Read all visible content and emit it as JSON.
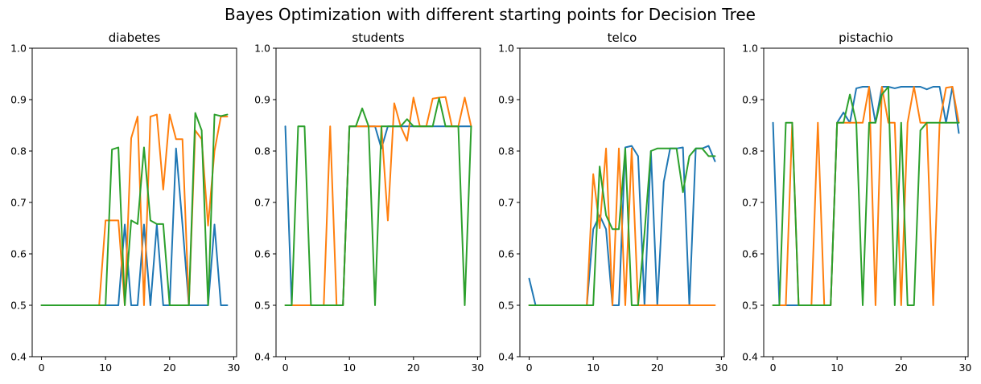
{
  "figure_title": "Bayes Optimization with different starting points for Decision Tree",
  "colors": {
    "c0": "#1f77b4",
    "c1": "#ff7f0e",
    "c2": "#2ca02c"
  },
  "chart_data": [
    {
      "type": "line",
      "title": "diabetes",
      "xlabel": "",
      "ylabel": "",
      "xlim": [
        -1.45,
        30.45
      ],
      "ylim": [
        0.4,
        1.0
      ],
      "xticks": [
        0,
        10,
        20,
        30
      ],
      "yticks": [
        0.4,
        0.5,
        0.6,
        0.7,
        0.8,
        0.9,
        1.0
      ],
      "xtick_labels": [
        "0",
        "10",
        "20",
        "30"
      ],
      "ytick_labels": [
        "0.4",
        "0.5",
        "0.6",
        "0.7",
        "0.8",
        "0.9",
        "1.0"
      ],
      "x": [
        0,
        1,
        2,
        3,
        4,
        5,
        6,
        7,
        8,
        9,
        10,
        11,
        12,
        13,
        14,
        15,
        16,
        17,
        18,
        19,
        20,
        21,
        22,
        23,
        24,
        25,
        26,
        27,
        28,
        29
      ],
      "series": [
        {
          "color": "#1f77b4",
          "values": [
            0.5,
            0.5,
            0.5,
            0.5,
            0.5,
            0.5,
            0.5,
            0.5,
            0.5,
            0.5,
            0.5,
            0.5,
            0.5,
            0.657,
            0.5,
            0.5,
            0.657,
            0.5,
            0.657,
            0.5,
            0.5,
            0.805,
            0.657,
            0.5,
            0.5,
            0.5,
            0.5,
            0.657,
            0.5,
            0.5
          ]
        },
        {
          "color": "#ff7f0e",
          "values": [
            0.5,
            0.5,
            0.5,
            0.5,
            0.5,
            0.5,
            0.5,
            0.5,
            0.5,
            0.5,
            0.665,
            0.665,
            0.665,
            0.5,
            0.825,
            0.867,
            0.5,
            0.867,
            0.871,
            0.725,
            0.871,
            0.823,
            0.823,
            0.5,
            0.84,
            0.823,
            0.655,
            0.8,
            0.867,
            0.867
          ]
        },
        {
          "color": "#2ca02c",
          "values": [
            0.5,
            0.5,
            0.5,
            0.5,
            0.5,
            0.5,
            0.5,
            0.5,
            0.5,
            0.5,
            0.5,
            0.803,
            0.807,
            0.5,
            0.665,
            0.658,
            0.807,
            0.665,
            0.658,
            0.658,
            0.5,
            0.5,
            0.5,
            0.5,
            0.874,
            0.84,
            0.5,
            0.871,
            0.868,
            0.871
          ]
        }
      ]
    },
    {
      "type": "line",
      "title": "students",
      "xlabel": "",
      "ylabel": "",
      "xlim": [
        -1.45,
        30.45
      ],
      "ylim": [
        0.4,
        1.0
      ],
      "xticks": [
        0,
        10,
        20,
        30
      ],
      "yticks": [
        0.4,
        0.5,
        0.6,
        0.7,
        0.8,
        0.9,
        1.0
      ],
      "xtick_labels": [
        "0",
        "10",
        "20",
        "30"
      ],
      "ytick_labels": [
        "0.4",
        "0.5",
        "0.6",
        "0.7",
        "0.8",
        "0.9",
        "1.0"
      ],
      "x": [
        0,
        1,
        2,
        3,
        4,
        5,
        6,
        7,
        8,
        9,
        10,
        11,
        12,
        13,
        14,
        15,
        16,
        17,
        18,
        19,
        20,
        21,
        22,
        23,
        24,
        25,
        26,
        27,
        28,
        29
      ],
      "series": [
        {
          "color": "#1f77b4",
          "values": [
            0.848,
            0.5,
            0.5,
            0.5,
            0.5,
            0.5,
            0.5,
            0.5,
            0.5,
            0.5,
            0.848,
            0.848,
            0.848,
            0.848,
            0.848,
            0.805,
            0.848,
            0.848,
            0.848,
            0.848,
            0.848,
            0.848,
            0.848,
            0.848,
            0.848,
            0.848,
            0.848,
            0.848,
            0.848,
            0.848
          ]
        },
        {
          "color": "#ff7f0e",
          "values": [
            0.5,
            0.5,
            0.5,
            0.5,
            0.5,
            0.5,
            0.5,
            0.848,
            0.5,
            0.5,
            0.848,
            0.848,
            0.848,
            0.848,
            0.848,
            0.848,
            0.665,
            0.893,
            0.848,
            0.82,
            0.904,
            0.848,
            0.848,
            0.902,
            0.904,
            0.905,
            0.848,
            0.848,
            0.904,
            0.848
          ]
        },
        {
          "color": "#2ca02c",
          "values": [
            0.5,
            0.5,
            0.848,
            0.848,
            0.5,
            0.5,
            0.5,
            0.5,
            0.5,
            0.5,
            0.848,
            0.848,
            0.883,
            0.848,
            0.5,
            0.848,
            0.848,
            0.848,
            0.848,
            0.862,
            0.848,
            0.848,
            0.848,
            0.848,
            0.903,
            0.848,
            0.848,
            0.848,
            0.5,
            0.848
          ]
        }
      ]
    },
    {
      "type": "line",
      "title": "telco",
      "xlabel": "",
      "ylabel": "",
      "xlim": [
        -1.45,
        30.45
      ],
      "ylim": [
        0.4,
        1.0
      ],
      "xticks": [
        0,
        10,
        20,
        30
      ],
      "yticks": [
        0.4,
        0.5,
        0.6,
        0.7,
        0.8,
        0.9,
        1.0
      ],
      "xtick_labels": [
        "0",
        "10",
        "20",
        "30"
      ],
      "ytick_labels": [
        "0.4",
        "0.5",
        "0.6",
        "0.7",
        "0.8",
        "0.9",
        "1.0"
      ],
      "x": [
        0,
        1,
        2,
        3,
        4,
        5,
        6,
        7,
        8,
        9,
        10,
        11,
        12,
        13,
        14,
        15,
        16,
        17,
        18,
        19,
        20,
        21,
        22,
        23,
        24,
        25,
        26,
        27,
        28,
        29
      ],
      "series": [
        {
          "color": "#1f77b4",
          "values": [
            0.552,
            0.5,
            0.5,
            0.5,
            0.5,
            0.5,
            0.5,
            0.5,
            0.5,
            0.5,
            0.648,
            0.675,
            0.648,
            0.5,
            0.5,
            0.807,
            0.81,
            0.79,
            0.5,
            0.8,
            0.5,
            0.74,
            0.805,
            0.805,
            0.807,
            0.5,
            0.805,
            0.805,
            0.81,
            0.78
          ]
        },
        {
          "color": "#ff7f0e",
          "values": [
            0.5,
            0.5,
            0.5,
            0.5,
            0.5,
            0.5,
            0.5,
            0.5,
            0.5,
            0.5,
            0.755,
            0.65,
            0.805,
            0.5,
            0.805,
            0.5,
            0.805,
            0.5,
            0.5,
            0.5,
            0.5,
            0.5,
            0.5,
            0.5,
            0.5,
            0.5,
            0.5,
            0.5,
            0.5,
            0.5
          ]
        },
        {
          "color": "#2ca02c",
          "values": [
            0.5,
            0.5,
            0.5,
            0.5,
            0.5,
            0.5,
            0.5,
            0.5,
            0.5,
            0.5,
            0.5,
            0.77,
            0.675,
            0.648,
            0.648,
            0.805,
            0.5,
            0.5,
            0.64,
            0.8,
            0.805,
            0.805,
            0.805,
            0.805,
            0.72,
            0.79,
            0.805,
            0.805,
            0.79,
            0.79
          ]
        }
      ]
    },
    {
      "type": "line",
      "title": "pistachio",
      "xlabel": "",
      "ylabel": "",
      "xlim": [
        -1.45,
        30.45
      ],
      "ylim": [
        0.4,
        1.0
      ],
      "xticks": [
        0,
        10,
        20,
        30
      ],
      "yticks": [
        0.4,
        0.5,
        0.6,
        0.7,
        0.8,
        0.9,
        1.0
      ],
      "xtick_labels": [
        "0",
        "10",
        "20",
        "30"
      ],
      "ytick_labels": [
        "0.4",
        "0.5",
        "0.6",
        "0.7",
        "0.8",
        "0.9",
        "1.0"
      ],
      "x": [
        0,
        1,
        2,
        3,
        4,
        5,
        6,
        7,
        8,
        9,
        10,
        11,
        12,
        13,
        14,
        15,
        16,
        17,
        18,
        19,
        20,
        21,
        22,
        23,
        24,
        25,
        26,
        27,
        28,
        29
      ],
      "series": [
        {
          "color": "#1f77b4",
          "values": [
            0.855,
            0.5,
            0.5,
            0.5,
            0.5,
            0.5,
            0.5,
            0.5,
            0.5,
            0.5,
            0.855,
            0.875,
            0.855,
            0.922,
            0.925,
            0.925,
            0.855,
            0.925,
            0.925,
            0.922,
            0.925,
            0.925,
            0.925,
            0.925,
            0.92,
            0.925,
            0.925,
            0.855,
            0.925,
            0.835
          ]
        },
        {
          "color": "#ff7f0e",
          "values": [
            0.5,
            0.5,
            0.5,
            0.855,
            0.5,
            0.5,
            0.5,
            0.855,
            0.5,
            0.5,
            0.855,
            0.855,
            0.855,
            0.855,
            0.855,
            0.925,
            0.5,
            0.925,
            0.855,
            0.855,
            0.5,
            0.855,
            0.925,
            0.855,
            0.855,
            0.5,
            0.855,
            0.923,
            0.925,
            0.855
          ]
        },
        {
          "color": "#2ca02c",
          "values": [
            0.5,
            0.5,
            0.855,
            0.855,
            0.5,
            0.5,
            0.5,
            0.5,
            0.5,
            0.5,
            0.855,
            0.855,
            0.91,
            0.855,
            0.5,
            0.855,
            0.855,
            0.91,
            0.925,
            0.5,
            0.855,
            0.5,
            0.5,
            0.84,
            0.855,
            0.855,
            0.855,
            0.855,
            0.855,
            0.855
          ]
        }
      ]
    }
  ]
}
